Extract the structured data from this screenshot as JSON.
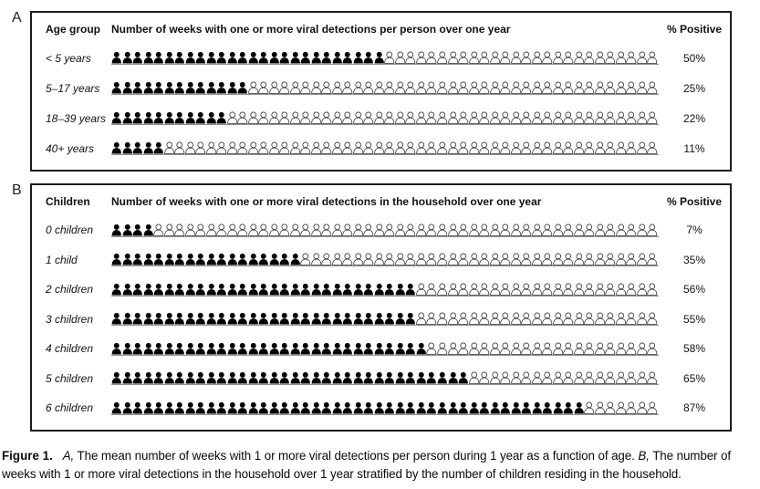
{
  "figure": {
    "panels": [
      {
        "label": "A",
        "col1_header": "Age group",
        "main_header": "Number of weeks with one or more viral detections per person over one year",
        "pct_header": "% Positive",
        "rows": [
          {
            "label": "< 5 years",
            "filled": 26,
            "total": 52,
            "pct": "50%"
          },
          {
            "label": "5–17 years",
            "filled": 13,
            "total": 52,
            "pct": "25%"
          },
          {
            "label": "18–39 years",
            "filled": 11,
            "total": 52,
            "pct": "22%"
          },
          {
            "label": "40+ years",
            "filled": 5,
            "total": 52,
            "pct": "11%"
          }
        ]
      },
      {
        "label": "B",
        "col1_header": "Children",
        "main_header": "Number of weeks with one or more viral detections in the household over one year",
        "pct_header": "% Positive",
        "rows": [
          {
            "label": "0 children",
            "filled": 4,
            "total": 52,
            "pct": "7%"
          },
          {
            "label": "1 child",
            "filled": 18,
            "total": 52,
            "pct": "35%"
          },
          {
            "label": "2 children",
            "filled": 29,
            "total": 52,
            "pct": "56%"
          },
          {
            "label": "3 children",
            "filled": 29,
            "total": 52,
            "pct": "55%"
          },
          {
            "label": "4 children",
            "filled": 30,
            "total": 52,
            "pct": "58%"
          },
          {
            "label": "5 children",
            "filled": 34,
            "total": 52,
            "pct": "65%"
          },
          {
            "label": "6 children",
            "filled": 45,
            "total": 52,
            "pct": "87%"
          }
        ]
      }
    ]
  },
  "caption": {
    "figure_label": "Figure 1.",
    "a_label": "A,",
    "a_text": "The mean number of weeks with 1 or more viral detections per person during 1 year as a function of age.",
    "b_label": "B,",
    "b_text": "The number of weeks with 1 or more viral detections in the household over 1 year stratified by the number of children residing in the household."
  },
  "chart_data": [
    {
      "type": "bar",
      "subtype": "pictogram",
      "panel": "A",
      "title": "Number of weeks with one or more viral detections per person over one year",
      "categories": [
        "< 5 years",
        "5–17 years",
        "18–39 years",
        "40+ years"
      ],
      "values": [
        26,
        13,
        11,
        5
      ],
      "total_units_per_row": 52,
      "unit": "weeks (1 person icon = 1 week)",
      "pct_positive_labels": [
        "50%",
        "25%",
        "22%",
        "11%"
      ],
      "xlabel": "Age group",
      "ylabel": "% Positive",
      "legend_position": "none",
      "grid": false
    },
    {
      "type": "bar",
      "subtype": "pictogram",
      "panel": "B",
      "title": "Number of weeks with one or more viral detections in the household over one year",
      "categories": [
        "0 children",
        "1 child",
        "2 children",
        "3 children",
        "4 children",
        "5 children",
        "6 children"
      ],
      "values": [
        4,
        18,
        29,
        29,
        30,
        34,
        45
      ],
      "total_units_per_row": 52,
      "unit": "weeks (1 person icon = 1 week)",
      "pct_positive_labels": [
        "7%",
        "35%",
        "56%",
        "55%",
        "58%",
        "65%",
        "87%"
      ],
      "xlabel": "Children",
      "ylabel": "% Positive",
      "legend_position": "none",
      "grid": false
    }
  ]
}
